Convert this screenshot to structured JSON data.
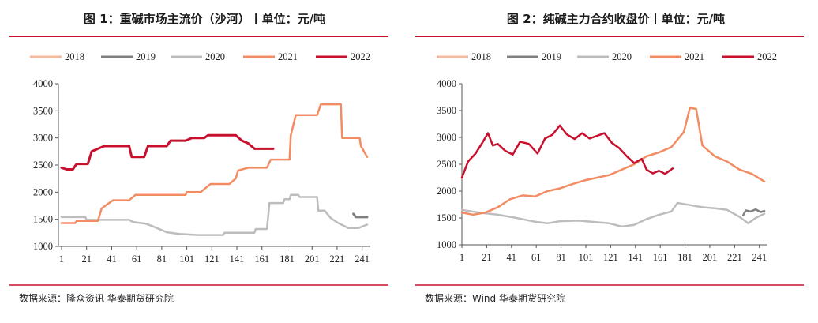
{
  "charts": [
    {
      "title": "图 1：重碱市场主流价（沙河）丨单位：元/吨",
      "source": "数据来源：隆众资讯 华泰期货研究院"
    },
    {
      "title": "图 2：纯碱主力合约收盘价丨单位：元/吨",
      "source": "数据来源：Wind 华泰期货研究院"
    }
  ],
  "chart_data": [
    {
      "type": "line",
      "title": "图 1：重碱市场主流价（沙河）丨单位：元/吨",
      "xlabel": "",
      "ylabel": "",
      "x_ticks": [
        1,
        21,
        41,
        61,
        81,
        101,
        121,
        141,
        161,
        181,
        201,
        221,
        241
      ],
      "y_ticks": [
        1000,
        1500,
        2000,
        2500,
        3000,
        3500,
        4000
      ],
      "xlim": [
        1,
        245
      ],
      "ylim": [
        1000,
        4000
      ],
      "grid": false,
      "legend": "top",
      "series": [
        {
          "name": "2018",
          "color": "#f5b99d",
          "width": 2.5,
          "points": []
        },
        {
          "name": "2019",
          "color": "#808080",
          "width": 3,
          "points": [
            [
              234,
              1600
            ],
            [
              236,
              1540
            ],
            [
              245,
              1540
            ]
          ]
        },
        {
          "name": "2020",
          "color": "#bdbdbd",
          "width": 2.5,
          "points": [
            [
              1,
              1540
            ],
            [
              20,
              1540
            ],
            [
              21,
              1490
            ],
            [
              55,
              1490
            ],
            [
              58,
              1450
            ],
            [
              68,
              1420
            ],
            [
              75,
              1360
            ],
            [
              85,
              1260
            ],
            [
              95,
              1230
            ],
            [
              110,
              1210
            ],
            [
              130,
              1210
            ],
            [
              131,
              1250
            ],
            [
              155,
              1250
            ],
            [
              156,
              1320
            ],
            [
              165,
              1320
            ],
            [
              167,
              1800
            ],
            [
              178,
              1800
            ],
            [
              179,
              1870
            ],
            [
              183,
              1870
            ],
            [
              184,
              1950
            ],
            [
              190,
              1950
            ],
            [
              191,
              1910
            ],
            [
              205,
              1910
            ],
            [
              206,
              1660
            ],
            [
              211,
              1660
            ],
            [
              216,
              1520
            ],
            [
              222,
              1430
            ],
            [
              230,
              1340
            ],
            [
              238,
              1340
            ],
            [
              245,
              1400
            ]
          ]
        },
        {
          "name": "2021",
          "color": "#f28c63",
          "width": 2.5,
          "points": [
            [
              1,
              1430
            ],
            [
              12,
              1430
            ],
            [
              13,
              1470
            ],
            [
              30,
              1470
            ],
            [
              33,
              1700
            ],
            [
              42,
              1850
            ],
            [
              55,
              1850
            ],
            [
              60,
              1950
            ],
            [
              100,
              1950
            ],
            [
              101,
              2000
            ],
            [
              112,
              2000
            ],
            [
              120,
              2150
            ],
            [
              135,
              2150
            ],
            [
              140,
              2250
            ],
            [
              142,
              2400
            ],
            [
              150,
              2450
            ],
            [
              165,
              2450
            ],
            [
              168,
              2600
            ],
            [
              183,
              2600
            ],
            [
              184,
              3050
            ],
            [
              188,
              3420
            ],
            [
              205,
              3420
            ],
            [
              208,
              3620
            ],
            [
              224,
              3620
            ],
            [
              225,
              3000
            ],
            [
              239,
              3000
            ],
            [
              240,
              2850
            ],
            [
              245,
              2650
            ]
          ]
        },
        {
          "name": "2022",
          "color": "#c8102e",
          "width": 3,
          "points": [
            [
              1,
              2450
            ],
            [
              5,
              2420
            ],
            [
              10,
              2420
            ],
            [
              13,
              2520
            ],
            [
              22,
              2520
            ],
            [
              25,
              2750
            ],
            [
              30,
              2800
            ],
            [
              35,
              2850
            ],
            [
              55,
              2850
            ],
            [
              57,
              2650
            ],
            [
              67,
              2650
            ],
            [
              70,
              2850
            ],
            [
              85,
              2850
            ],
            [
              88,
              2950
            ],
            [
              100,
              2950
            ],
            [
              105,
              3000
            ],
            [
              115,
              3000
            ],
            [
              118,
              3050
            ],
            [
              140,
              3050
            ],
            [
              145,
              2950
            ],
            [
              150,
              2900
            ],
            [
              155,
              2800
            ],
            [
              170,
              2800
            ]
          ]
        }
      ]
    },
    {
      "type": "line",
      "title": "图 2：纯碱主力合约收盘价丨单位：元/吨",
      "xlabel": "",
      "ylabel": "",
      "x_ticks": [
        1,
        21,
        41,
        61,
        81,
        101,
        121,
        141,
        161,
        181,
        201,
        221,
        241
      ],
      "y_ticks": [
        1000,
        1500,
        2000,
        2500,
        3000,
        3500,
        4000
      ],
      "xlim": [
        1,
        245
      ],
      "ylim": [
        1000,
        4000
      ],
      "grid": false,
      "legend": "top",
      "series": [
        {
          "name": "2018",
          "color": "#f5b99d",
          "width": 2.5,
          "points": []
        },
        {
          "name": "2019",
          "color": "#808080",
          "width": 2.5,
          "points": [
            [
              228,
              1550
            ],
            [
              230,
              1640
            ],
            [
              234,
              1620
            ],
            [
              238,
              1660
            ],
            [
              242,
              1610
            ],
            [
              245,
              1630
            ]
          ]
        },
        {
          "name": "2020",
          "color": "#bdbdbd",
          "width": 2.5,
          "points": [
            [
              1,
              1650
            ],
            [
              15,
              1600
            ],
            [
              30,
              1560
            ],
            [
              45,
              1500
            ],
            [
              60,
              1430
            ],
            [
              70,
              1400
            ],
            [
              80,
              1440
            ],
            [
              95,
              1450
            ],
            [
              110,
              1420
            ],
            [
              120,
              1400
            ],
            [
              130,
              1340
            ],
            [
              140,
              1370
            ],
            [
              150,
              1480
            ],
            [
              160,
              1560
            ],
            [
              170,
              1620
            ],
            [
              175,
              1780
            ],
            [
              185,
              1740
            ],
            [
              195,
              1700
            ],
            [
              205,
              1680
            ],
            [
              215,
              1650
            ],
            [
              225,
              1520
            ],
            [
              232,
              1400
            ],
            [
              238,
              1500
            ],
            [
              245,
              1580
            ]
          ]
        },
        {
          "name": "2021",
          "color": "#f28c63",
          "width": 2.5,
          "points": [
            [
              1,
              1600
            ],
            [
              10,
              1560
            ],
            [
              20,
              1600
            ],
            [
              30,
              1700
            ],
            [
              40,
              1850
            ],
            [
              50,
              1920
            ],
            [
              60,
              1900
            ],
            [
              70,
              2000
            ],
            [
              80,
              2050
            ],
            [
              90,
              2130
            ],
            [
              100,
              2200
            ],
            [
              110,
              2250
            ],
            [
              120,
              2300
            ],
            [
              130,
              2400
            ],
            [
              140,
              2500
            ],
            [
              150,
              2650
            ],
            [
              160,
              2720
            ],
            [
              170,
              2820
            ],
            [
              180,
              3100
            ],
            [
              185,
              3550
            ],
            [
              190,
              3530
            ],
            [
              195,
              2850
            ],
            [
              205,
              2650
            ],
            [
              215,
              2550
            ],
            [
              225,
              2400
            ],
            [
              235,
              2320
            ],
            [
              245,
              2180
            ]
          ]
        },
        {
          "name": "2022",
          "color": "#c8102e",
          "width": 2.5,
          "points": [
            [
              1,
              2250
            ],
            [
              6,
              2550
            ],
            [
              12,
              2700
            ],
            [
              18,
              2920
            ],
            [
              22,
              3080
            ],
            [
              26,
              2850
            ],
            [
              30,
              2880
            ],
            [
              36,
              2750
            ],
            [
              42,
              2680
            ],
            [
              48,
              2920
            ],
            [
              55,
              2880
            ],
            [
              62,
              2700
            ],
            [
              68,
              2980
            ],
            [
              74,
              3050
            ],
            [
              80,
              3220
            ],
            [
              86,
              3050
            ],
            [
              92,
              2970
            ],
            [
              98,
              3080
            ],
            [
              104,
              2980
            ],
            [
              110,
              3030
            ],
            [
              116,
              3080
            ],
            [
              122,
              2900
            ],
            [
              128,
              2800
            ],
            [
              134,
              2650
            ],
            [
              140,
              2520
            ],
            [
              146,
              2600
            ],
            [
              150,
              2400
            ],
            [
              155,
              2330
            ],
            [
              160,
              2380
            ],
            [
              165,
              2320
            ],
            [
              171,
              2420
            ]
          ]
        }
      ]
    }
  ]
}
